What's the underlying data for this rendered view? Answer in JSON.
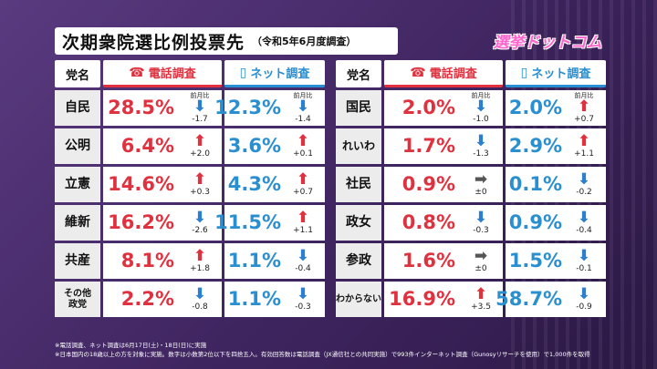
{
  "title": "次期衆院選比例投票先",
  "subtitle": "（令和5年6月度調査）",
  "logo": "選挙ドットコム",
  "headers": {
    "party": "党名",
    "phone": "電話調査",
    "net": "ネット調査"
  },
  "change_label": "前月比",
  "left": [
    {
      "party": "自民",
      "phone": "28.5%",
      "phone_dir": "down",
      "phone_diff": "-1.7",
      "phone_lbl": true,
      "net": "12.3%",
      "net_dir": "down",
      "net_diff": "-1.4",
      "net_lbl": true
    },
    {
      "party": "公明",
      "phone": "6.4%",
      "phone_dir": "up",
      "phone_diff": "+2.0",
      "net": "3.6%",
      "net_dir": "up",
      "net_diff": "+0.1"
    },
    {
      "party": "立憲",
      "phone": "14.6%",
      "phone_dir": "up",
      "phone_diff": "+0.3",
      "net": "4.3%",
      "net_dir": "up",
      "net_diff": "+0.7"
    },
    {
      "party": "維新",
      "phone": "16.2%",
      "phone_dir": "down",
      "phone_diff": "-2.6",
      "net": "11.5%",
      "net_dir": "up",
      "net_diff": "+1.1"
    },
    {
      "party": "共産",
      "phone": "8.1%",
      "phone_dir": "up",
      "phone_diff": "+1.8",
      "net": "1.1%",
      "net_dir": "down",
      "net_diff": "-0.4"
    },
    {
      "party": "その他\n政党",
      "phone": "2.2%",
      "phone_dir": "down",
      "phone_diff": "-0.8",
      "net": "1.1%",
      "net_dir": "down",
      "net_diff": "-0.3"
    }
  ],
  "right": [
    {
      "party": "国民",
      "phone": "2.0%",
      "phone_dir": "down",
      "phone_diff": "-1.0",
      "phone_lbl": true,
      "net": "2.0%",
      "net_dir": "up",
      "net_diff": "+0.7",
      "net_lbl": true
    },
    {
      "party": "れいわ",
      "phone": "1.7%",
      "phone_dir": "down",
      "phone_diff": "-1.3",
      "net": "2.9%",
      "net_dir": "up",
      "net_diff": "+1.1"
    },
    {
      "party": "社民",
      "phone": "0.9%",
      "phone_dir": "flat",
      "phone_diff": "±0",
      "net": "0.1%",
      "net_dir": "down",
      "net_diff": "-0.2"
    },
    {
      "party": "政女",
      "phone": "0.8%",
      "phone_dir": "down",
      "phone_diff": "-0.3",
      "net": "0.9%",
      "net_dir": "down",
      "net_diff": "-0.4"
    },
    {
      "party": "参政",
      "phone": "1.6%",
      "phone_dir": "flat",
      "phone_diff": "±0",
      "net": "1.5%",
      "net_dir": "down",
      "net_diff": "-0.1"
    },
    {
      "party": "わからない",
      "phone": "16.9%",
      "phone_dir": "up",
      "phone_diff": "+3.5",
      "net": "58.7%",
      "net_dir": "down",
      "net_diff": "-0.9"
    }
  ],
  "notes": [
    "※電話調査、ネット調査は6月17日(土)・18日(日)に実施",
    "※日本国内の18歳以上の方を対象に実施。数字は小数第2位以下を四捨五入。有効回答数は電話調査（JX通信社との共同実施）で993件インターネット調査（Gunosyリサーチを使用）で1,000件を取得"
  ]
}
